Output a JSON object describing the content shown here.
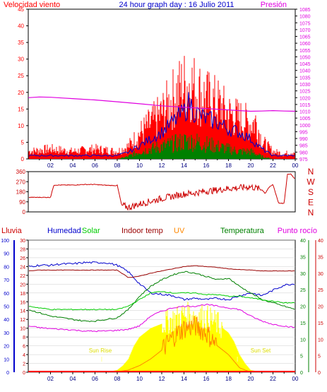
{
  "header": {
    "left_label": "Velocidad viento",
    "title": "24 hour graph day : 16 Julio 2011",
    "right_label": "Presión"
  },
  "colors": {
    "wind_gust": "#ff0000",
    "wind_avg": "#0000cc",
    "wind_min": "#008000",
    "pressure": "#e000e0",
    "direction": "#cc0000",
    "rain_axis": "#000080",
    "humidity": "#0000cc",
    "solar": "#00cc00",
    "indoor": "#990000",
    "uv": "#ff8800",
    "temperature": "#008000",
    "dewpoint": "#e000e0",
    "sun": "#ffff00",
    "tick": "#000080",
    "grid": "#cccccc",
    "cardinal": "#cc0000"
  },
  "panels": {
    "lower_legend": {
      "rain": "Lluvia",
      "humidity": "Humedad",
      "solar": "Solar",
      "indoor": "Indoor temp",
      "uv": "UV",
      "temperature": "Temperatura",
      "dewpoint": "Punto rocío"
    },
    "sun_labels": {
      "sunrise": "Sun Rise",
      "sunset": "Sun Set"
    },
    "cardinals": [
      "N",
      "W",
      "S",
      "E",
      "N"
    ]
  },
  "chart_data": [
    {
      "id": "wind",
      "type": "area",
      "title": "Velocidad viento",
      "ylim": [
        0,
        45
      ],
      "yticks": [
        "0",
        "5",
        "10",
        "15",
        "20",
        "25",
        "30",
        "35",
        "40",
        "45"
      ],
      "y2lim": [
        975,
        1085
      ],
      "y2ticks": [
        "975",
        "980",
        "985",
        "990",
        "995",
        "1000",
        "1005",
        "1010",
        "1015",
        "1020",
        "1025",
        "1030",
        "1035",
        "1040",
        "1045",
        "1050",
        "1055",
        "1060",
        "1065",
        "1070",
        "1075",
        "1080",
        "1085"
      ],
      "xticks": [
        "02",
        "04",
        "06",
        "08",
        "10",
        "12",
        "14",
        "16",
        "18",
        "20",
        "22",
        "00"
      ],
      "series": [
        {
          "name": "gust",
          "type": "area",
          "x": [
            0,
            2,
            4,
            6,
            8,
            8.5,
            9,
            10,
            11,
            12,
            13,
            13.5,
            14,
            14.5,
            15,
            15.5,
            16,
            17,
            18,
            19,
            20,
            20.5,
            21,
            21.5,
            22,
            23,
            24
          ],
          "values": [
            3,
            4,
            3,
            4,
            3,
            4,
            5,
            10,
            14,
            18,
            24,
            27,
            29,
            30,
            28,
            26,
            24,
            22,
            18,
            16,
            14,
            15,
            7,
            5,
            3,
            2,
            3
          ]
        },
        {
          "name": "avg",
          "type": "line",
          "x": [
            0,
            2,
            4,
            6,
            8,
            9,
            10,
            11,
            12,
            13,
            14,
            14.5,
            15,
            16,
            17,
            18,
            19,
            20,
            21,
            22,
            23,
            24
          ],
          "values": [
            1,
            1,
            1,
            1,
            1,
            2,
            4,
            6,
            8,
            11,
            14,
            17,
            14,
            12,
            11,
            9,
            8,
            6,
            3,
            1,
            1,
            1
          ]
        },
        {
          "name": "min",
          "type": "area",
          "x": [
            0,
            2,
            4,
            6,
            8,
            9,
            10,
            11,
            12,
            13,
            14,
            15,
            16,
            17,
            18,
            19,
            20,
            21,
            22,
            23,
            24
          ],
          "values": [
            0,
            0,
            0,
            0,
            0,
            1,
            3,
            4,
            5,
            6,
            7,
            7,
            6,
            5,
            4,
            3,
            3,
            1,
            0,
            0,
            0
          ]
        },
        {
          "name": "pressure",
          "type": "line",
          "axis": "y2",
          "x": [
            0,
            1,
            2,
            3,
            4,
            5,
            6,
            8,
            10,
            12,
            14,
            16,
            18,
            19,
            20,
            21,
            22,
            23,
            24
          ],
          "values": [
            1020,
            1020.5,
            1020.3,
            1019.8,
            1019.3,
            1018.8,
            1018.3,
            1017,
            1015.5,
            1014,
            1013,
            1012,
            1011,
            1010.5,
            1010,
            1010.2,
            1010.5,
            1010.2,
            1010
          ]
        }
      ]
    },
    {
      "id": "direction",
      "type": "line",
      "ylim": [
        0,
        360
      ],
      "yticks": [
        "0",
        "90",
        "180",
        "270",
        "360"
      ],
      "series": [
        {
          "name": "direction",
          "x": [
            0,
            0.5,
            1,
            1.5,
            2,
            2.3,
            3,
            4,
            5,
            6,
            7,
            7.8,
            8,
            8.4,
            9,
            10,
            11,
            12,
            13,
            14,
            15,
            16,
            17,
            18,
            19,
            20,
            21,
            21.3,
            21.6,
            22,
            22.5,
            23,
            23.3,
            23.6,
            24
          ],
          "values": [
            130,
            130,
            130,
            130,
            130,
            240,
            240,
            240,
            245,
            245,
            238,
            235,
            238,
            60,
            40,
            70,
            95,
            120,
            140,
            160,
            170,
            185,
            195,
            210,
            215,
            225,
            200,
            165,
            215,
            245,
            80,
            75,
            335,
            340,
            290
          ]
        }
      ]
    },
    {
      "id": "weather",
      "type": "line",
      "ylim_left": [
        0,
        30
      ],
      "ticks_humidity": [
        "0",
        "10",
        "20",
        "30",
        "40",
        "50",
        "60",
        "70",
        "80",
        "90",
        "100"
      ],
      "ticks_temp_left": [
        "0",
        "2",
        "4",
        "6",
        "8",
        "10",
        "12",
        "14",
        "16",
        "18",
        "20",
        "22",
        "24",
        "26",
        "28",
        "30"
      ],
      "ticks_temp_right": [
        "0",
        "5",
        "10",
        "15",
        "20",
        "25",
        "30",
        "35",
        "40"
      ],
      "ticks_dew_right": [
        "0",
        "5",
        "10",
        "15",
        "20",
        "25",
        "30",
        "35",
        "40"
      ],
      "xticks": [
        "02",
        "04",
        "06",
        "08",
        "10",
        "12",
        "14",
        "16",
        "18",
        "20",
        "22",
        "00"
      ],
      "series": [
        {
          "name": "humidity",
          "x": [
            0,
            1,
            2,
            3,
            4,
            5,
            6,
            7,
            8,
            9,
            10,
            11,
            12,
            13,
            14,
            15,
            16,
            17,
            18,
            19,
            20,
            21,
            22,
            23,
            24
          ],
          "values": [
            80,
            81,
            81,
            82,
            82,
            83,
            83,
            83,
            81,
            76,
            67,
            60,
            59,
            58,
            55,
            56,
            55,
            56,
            55,
            58,
            60,
            58,
            62,
            66,
            67
          ]
        },
        {
          "name": "temperature",
          "x": [
            0,
            1,
            2,
            3,
            4,
            5,
            6,
            7,
            8,
            9,
            10,
            11,
            12,
            13,
            14,
            15,
            16,
            17,
            18,
            19,
            20,
            21,
            22,
            23,
            24
          ],
          "values": [
            19,
            18,
            17,
            16.5,
            16,
            15.5,
            15.5,
            16,
            16.5,
            19,
            23,
            26,
            28,
            29.5,
            30.5,
            30,
            29,
            28,
            28.5,
            26,
            24,
            22,
            21,
            20,
            19
          ]
        },
        {
          "name": "indoor",
          "x": [
            0,
            1,
            2,
            3,
            4,
            5,
            6,
            7,
            8,
            9,
            10,
            11,
            12,
            13,
            14,
            15,
            16,
            17,
            18,
            19,
            20,
            21,
            22,
            23,
            24
          ],
          "values": [
            23,
            23.2,
            23.2,
            23.2,
            23.2,
            23.2,
            23.2,
            23.2,
            23.2,
            21.5,
            21.8,
            22.5,
            23,
            23.5,
            24,
            24.2,
            24,
            23.8,
            23.5,
            23.3,
            23.2,
            23,
            23,
            23,
            23
          ]
        },
        {
          "name": "solar",
          "x": [
            0,
            1,
            2,
            3,
            4,
            5,
            6,
            7,
            8,
            9,
            10,
            11,
            12,
            13,
            14,
            15,
            16,
            17,
            18,
            19,
            20,
            21,
            22,
            23,
            24
          ],
          "values": [
            20,
            19.5,
            19,
            19,
            19,
            19,
            19,
            19,
            19,
            20,
            22,
            24,
            24.5,
            24,
            24,
            24,
            23.5,
            23.5,
            23,
            23,
            22.5,
            22,
            21.5,
            21,
            21
          ]
        },
        {
          "name": "dewpoint",
          "x": [
            0,
            1,
            2,
            3,
            4,
            5,
            6,
            7,
            8,
            9,
            10,
            11,
            12,
            13,
            14,
            15,
            16,
            17,
            18,
            19,
            20,
            21,
            22,
            23,
            24
          ],
          "values": [
            14,
            13.5,
            13.2,
            13,
            12.8,
            12.5,
            12.4,
            12.5,
            12.7,
            13,
            14,
            17,
            18.5,
            19.5,
            20,
            20,
            20.5,
            20,
            19.5,
            19,
            17,
            15.5,
            14.5,
            14,
            13.5
          ]
        },
        {
          "name": "sun",
          "type": "area",
          "x": [
            6,
            7,
            8,
            8.5,
            9,
            9.5,
            10,
            11,
            12,
            13,
            14,
            15,
            16,
            17,
            18,
            18.5,
            19,
            19.5,
            20,
            21
          ],
          "values": [
            0,
            0,
            0.5,
            1.5,
            3,
            6,
            8,
            10,
            11,
            12,
            13,
            13,
            12.5,
            11,
            9,
            7,
            4,
            2,
            0.5,
            0
          ]
        },
        {
          "name": "uv",
          "type": "line",
          "x": [
            8,
            9,
            10,
            11,
            12,
            13,
            14,
            15,
            16,
            17,
            18,
            19,
            20
          ],
          "values": [
            0.1,
            0.5,
            1.5,
            3,
            5,
            8,
            10,
            10.5,
            9,
            6,
            4,
            1,
            0
          ]
        }
      ]
    }
  ]
}
